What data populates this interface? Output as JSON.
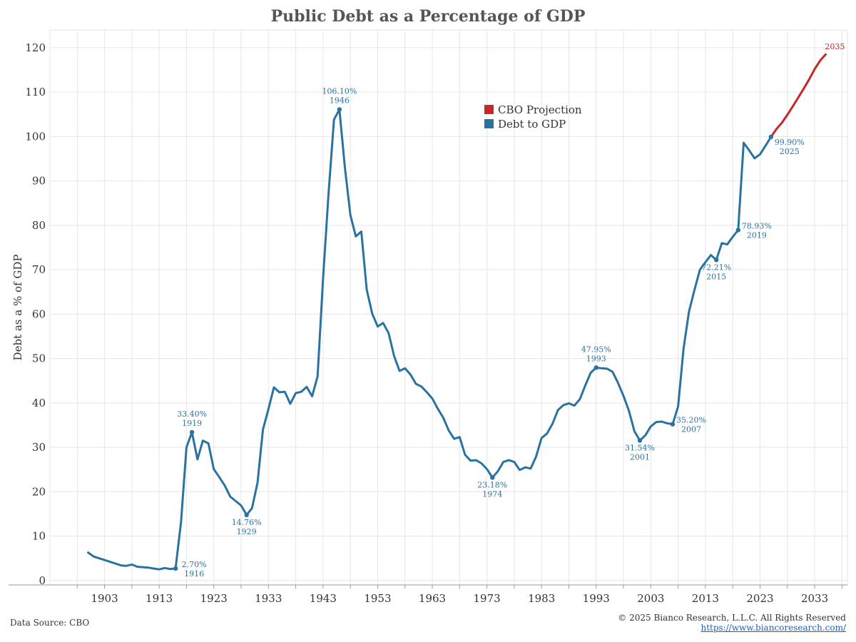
{
  "footer": {
    "source": "Data Source: CBO",
    "copyright": "© 2025 Bianco Research, L.L.C. All Rights Reserved",
    "url": "https://www.biancoresearch.com/"
  },
  "colors": {
    "history": "#2a73a0",
    "projection": "#c62828",
    "grid": "#e6e6e6",
    "axis": "#333333",
    "label_text": "#2a73a0"
  },
  "chart_data": {
    "type": "line",
    "title": "Public Debt as a Percentage of GDP",
    "ylabel": "Debt as a % of GDP",
    "xlabel": "",
    "xlim": [
      1893,
      2039
    ],
    "ylim": [
      -1,
      124
    ],
    "xticks": [
      1903,
      1913,
      1923,
      1933,
      1943,
      1953,
      1963,
      1973,
      1983,
      1993,
      2003,
      2013,
      2023,
      2033
    ],
    "yticks": [
      0,
      10,
      20,
      30,
      40,
      50,
      60,
      70,
      80,
      90,
      100,
      110,
      120
    ],
    "grid": true,
    "legend_position": "top-center",
    "series": [
      {
        "name": "Debt to GDP",
        "color": "#2a73a0",
        "x": [
          1900,
          1901,
          1902,
          1903,
          1904,
          1905,
          1906,
          1907,
          1908,
          1909,
          1910,
          1911,
          1912,
          1913,
          1914,
          1915,
          1916,
          1917,
          1918,
          1919,
          1920,
          1921,
          1922,
          1923,
          1924,
          1925,
          1926,
          1927,
          1928,
          1929,
          1930,
          1931,
          1932,
          1933,
          1934,
          1935,
          1936,
          1937,
          1938,
          1939,
          1940,
          1941,
          1942,
          1943,
          1944,
          1945,
          1946,
          1947,
          1948,
          1949,
          1950,
          1951,
          1952,
          1953,
          1954,
          1955,
          1956,
          1957,
          1958,
          1959,
          1960,
          1961,
          1962,
          1963,
          1964,
          1965,
          1966,
          1967,
          1968,
          1969,
          1970,
          1971,
          1972,
          1973,
          1974,
          1975,
          1976,
          1977,
          1978,
          1979,
          1980,
          1981,
          1982,
          1983,
          1984,
          1985,
          1986,
          1987,
          1988,
          1989,
          1990,
          1991,
          1992,
          1993,
          1994,
          1995,
          1996,
          1997,
          1998,
          1999,
          2000,
          2001,
          2002,
          2003,
          2004,
          2005,
          2006,
          2007,
          2008,
          2009,
          2010,
          2011,
          2012,
          2013,
          2014,
          2015,
          2016,
          2017,
          2018,
          2019,
          2020,
          2021,
          2022,
          2023,
          2024,
          2025
        ],
        "values": [
          6.3,
          5.4,
          5.0,
          4.6,
          4.2,
          3.8,
          3.4,
          3.3,
          3.6,
          3.1,
          3.0,
          2.9,
          2.7,
          2.5,
          2.8,
          2.6,
          2.7,
          13.2,
          30.0,
          33.4,
          27.3,
          31.5,
          30.9,
          25.1,
          23.3,
          21.4,
          18.9,
          17.9,
          16.9,
          14.76,
          16.3,
          22.0,
          34.0,
          38.6,
          43.5,
          42.4,
          42.5,
          39.8,
          42.2,
          42.5,
          43.6,
          41.5,
          46.0,
          68.0,
          87.0,
          103.8,
          106.1,
          93.0,
          82.3,
          77.5,
          78.6,
          65.5,
          60.1,
          57.2,
          58.0,
          55.7,
          50.6,
          47.2,
          47.8,
          46.4,
          44.3,
          43.7,
          42.4,
          41.0,
          38.7,
          36.7,
          33.8,
          31.9,
          32.3,
          28.3,
          27.0,
          27.1,
          26.4,
          25.1,
          23.18,
          24.6,
          26.7,
          27.1,
          26.7,
          24.9,
          25.5,
          25.2,
          27.9,
          32.1,
          33.1,
          35.3,
          38.4,
          39.5,
          39.9,
          39.4,
          40.8,
          43.9,
          46.8,
          47.95,
          47.8,
          47.7,
          47.0,
          44.5,
          41.6,
          38.2,
          33.6,
          31.54,
          32.7,
          34.7,
          35.7,
          35.8,
          35.4,
          35.2,
          39.2,
          52.3,
          60.6,
          65.5,
          70.0,
          71.7,
          73.3,
          72.21,
          76.0,
          75.7,
          77.4,
          78.93,
          98.6,
          96.9,
          95.1,
          96.0,
          97.9,
          99.9
        ]
      },
      {
        "name": "CBO Projection",
        "color": "#c62828",
        "x": [
          2025,
          2026,
          2027,
          2028,
          2029,
          2030,
          2031,
          2032,
          2033,
          2034,
          2035
        ],
        "values": [
          99.9,
          101.7,
          103.1,
          104.9,
          106.8,
          108.8,
          110.8,
          112.9,
          115.2,
          117.1,
          118.5
        ]
      }
    ],
    "annotations": [
      {
        "year": 1916,
        "value": 2.7,
        "label": "2.70%",
        "year_label": "1916",
        "pos": "right"
      },
      {
        "year": 1919,
        "value": 33.4,
        "label": "33.40%",
        "year_label": "1919",
        "pos": "above"
      },
      {
        "year": 1929,
        "value": 14.76,
        "label": "14.76%",
        "year_label": "1929",
        "pos": "below"
      },
      {
        "year": 1946,
        "value": 106.1,
        "label": "106.10%",
        "year_label": "1946",
        "pos": "above"
      },
      {
        "year": 1974,
        "value": 23.18,
        "label": "23.18%",
        "year_label": "1974",
        "pos": "below"
      },
      {
        "year": 1993,
        "value": 47.95,
        "label": "47.95%",
        "year_label": "1993",
        "pos": "above"
      },
      {
        "year": 2001,
        "value": 31.54,
        "label": "31.54%",
        "year_label": "2001",
        "pos": "below"
      },
      {
        "year": 2007,
        "value": 35.2,
        "label": "35.20%",
        "year_label": "2007",
        "pos": "right"
      },
      {
        "year": 2015,
        "value": 72.21,
        "label": "72.21%",
        "year_label": "2015",
        "pos": "below"
      },
      {
        "year": 2019,
        "value": 78.93,
        "label": "78.93%",
        "year_label": "2019",
        "pos": "right"
      },
      {
        "year": 2025,
        "value": 99.9,
        "label": "99.90%",
        "year_label": "2025",
        "pos": "below-right"
      },
      {
        "year": 2035,
        "value": 118.5,
        "label": "",
        "year_label": "2035",
        "pos": "right-red"
      }
    ]
  }
}
